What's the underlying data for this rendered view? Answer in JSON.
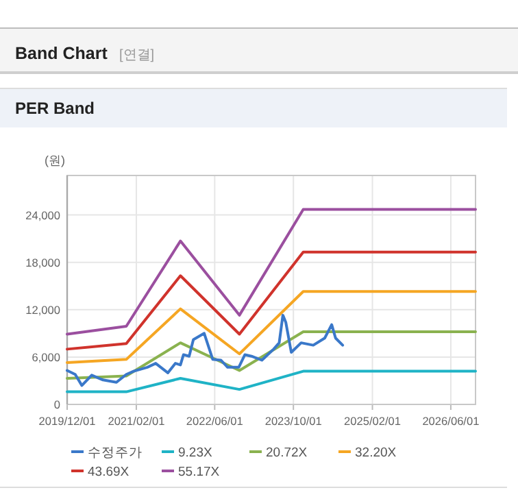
{
  "chart_data": {
    "type": "line",
    "title": "Band Chart",
    "subtitle": "[연결]",
    "annotations": [
      "PER Band"
    ],
    "ylabel": "(원)",
    "xlim": [
      "2019-12-01",
      "2026-11-01"
    ],
    "xticks": [
      {
        "value": "2019-12-01",
        "label": "2019/12/01"
      },
      {
        "value": "2021-02-01",
        "label": "2021/02/01"
      },
      {
        "value": "2022-06-01",
        "label": "2022/06/01"
      },
      {
        "value": "2023-10-01",
        "label": "2023/10/01"
      },
      {
        "value": "2025-02-01",
        "label": "2025/02/01"
      },
      {
        "value": "2026-06-01",
        "label": "2026/06/01"
      }
    ],
    "ylim": [
      0,
      29000
    ],
    "yticks": [
      {
        "value": 0,
        "label": "0"
      },
      {
        "value": 6000,
        "label": "6,000"
      },
      {
        "value": 12000,
        "label": "12,000"
      },
      {
        "value": 18000,
        "label": "18,000"
      },
      {
        "value": 24000,
        "label": "24,000"
      }
    ],
    "grid": true,
    "legend": "bottom",
    "marker": "none",
    "line_style": "solid",
    "series": [
      {
        "name": "수정주가",
        "color": "#3a78c9",
        "x": [
          "2019-12-01",
          "2020-01-20",
          "2020-03-01",
          "2020-05-01",
          "2020-07-10",
          "2020-10-01",
          "2020-12-01",
          "2021-01-15",
          "2021-04-10",
          "2021-06-01",
          "2021-08-15",
          "2021-10-01",
          "2021-11-01",
          "2021-11-20",
          "2021-12-25",
          "2022-01-20",
          "2022-03-28",
          "2022-05-20",
          "2022-07-10",
          "2022-08-20",
          "2022-10-28",
          "2022-12-05",
          "2023-01-15",
          "2023-03-20",
          "2023-06-01",
          "2023-07-05",
          "2023-07-28",
          "2023-08-15",
          "2023-09-18",
          "2023-11-18",
          "2024-02-01",
          "2024-04-12",
          "2024-05-25",
          "2024-06-18",
          "2024-08-01"
        ],
        "values": [
          4300,
          3800,
          2400,
          3700,
          3100,
          2800,
          3800,
          4200,
          4700,
          5200,
          4000,
          5200,
          5000,
          6300,
          6100,
          8200,
          9000,
          5700,
          5600,
          4700,
          4700,
          6300,
          6100,
          5600,
          7000,
          7800,
          11300,
          10400,
          6600,
          7800,
          7500,
          8400,
          10100,
          8400,
          7500
        ]
      },
      {
        "name": "9.23X",
        "color": "#1fb3c6",
        "x": [
          "2019-12-01",
          "2020-12-01",
          "2021-11-01",
          "2022-11-01",
          "2023-12-01",
          "2026-11-01"
        ],
        "values": [
          1600,
          1600,
          3300,
          1900,
          4200,
          4200
        ]
      },
      {
        "name": "20.72X",
        "color": "#8ab24f",
        "x": [
          "2019-12-01",
          "2020-12-01",
          "2021-11-01",
          "2022-11-01",
          "2023-12-01",
          "2026-11-01"
        ],
        "values": [
          3300,
          3600,
          7800,
          4300,
          9200,
          9200
        ]
      },
      {
        "name": "32.20X",
        "color": "#f5a623",
        "x": [
          "2019-12-01",
          "2020-12-01",
          "2021-11-01",
          "2022-11-01",
          "2023-12-01",
          "2026-11-01"
        ],
        "values": [
          5300,
          5700,
          12100,
          6400,
          14300,
          14300
        ]
      },
      {
        "name": "43.69X",
        "color": "#d0332c",
        "x": [
          "2019-12-01",
          "2020-12-01",
          "2021-11-01",
          "2022-11-01",
          "2023-12-01",
          "2026-11-01"
        ],
        "values": [
          7000,
          7700,
          16300,
          8900,
          19300,
          19300
        ]
      },
      {
        "name": "55.17X",
        "color": "#9b4f9f",
        "x": [
          "2019-12-01",
          "2020-12-01",
          "2021-11-01",
          "2022-11-01",
          "2023-12-01",
          "2026-11-01"
        ],
        "values": [
          8900,
          9900,
          20700,
          11300,
          24700,
          24700
        ]
      }
    ]
  }
}
